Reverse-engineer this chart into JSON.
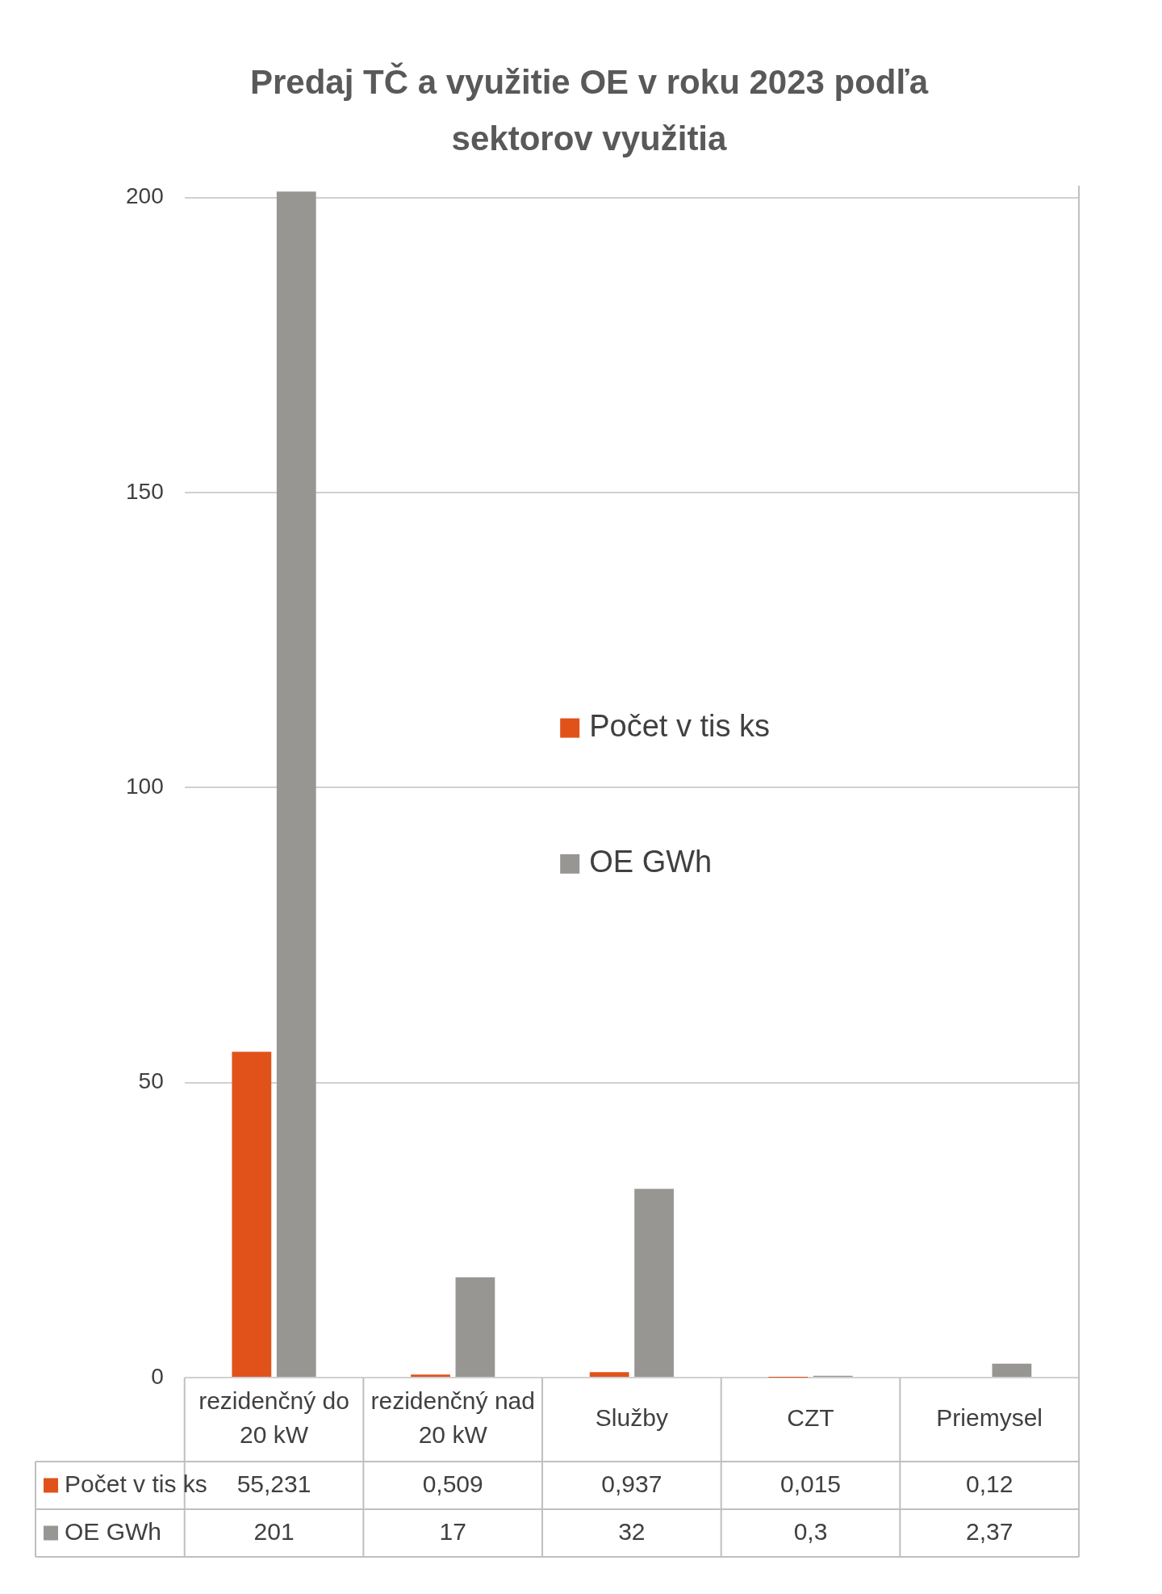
{
  "chart_data": {
    "type": "bar",
    "title": "Predaj TČ a využitie OE v roku 2023 podľa sektorov využitia",
    "categories": [
      "rezidenčný do 20 kW",
      "rezidenčný nad 20 kW",
      "Služby",
      "CZT",
      "Priemysel"
    ],
    "series": [
      {
        "name": "Počet v tis ks",
        "color": "#e0521a",
        "values": [
          55.231,
          0.509,
          0.937,
          0.015,
          0.12
        ],
        "value_labels": [
          "55,231",
          "0,509",
          "0,937",
          "0,015",
          "0,12"
        ]
      },
      {
        "name": "OE GWh",
        "color": "#979693",
        "values": [
          201,
          17,
          32,
          0.3,
          2.37
        ],
        "value_labels": [
          "201",
          "17",
          "32",
          "0,3",
          "2,37"
        ]
      }
    ],
    "ylim": [
      0,
      202
    ],
    "yticks": [
      0,
      50,
      100,
      150,
      200
    ],
    "grid": "y",
    "legend": "center"
  }
}
